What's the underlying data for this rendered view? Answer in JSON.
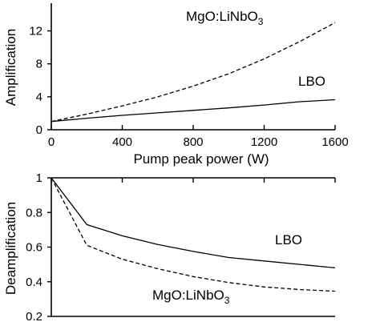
{
  "chart_data": [
    {
      "type": "line",
      "title": "",
      "xlabel": "Pump peak power (W)",
      "ylabel": "Amplification",
      "xlim": [
        0,
        1600
      ],
      "ylim": [
        0,
        14
      ],
      "x_ticks": [
        0,
        400,
        800,
        1200,
        1600
      ],
      "x_tick_labels": [
        "0",
        "400",
        "800",
        "1200",
        "1600"
      ],
      "y_ticks": [
        0,
        4,
        8,
        12
      ],
      "y_tick_labels": [
        "0",
        "4",
        "8",
        "12"
      ],
      "grid": false,
      "series": [
        {
          "name": "MgO:LiNbO",
          "name_subscript": "3",
          "style": "dashed",
          "x": [
            0,
            200,
            400,
            600,
            800,
            1000,
            1200,
            1400,
            1600
          ],
          "y": [
            1.0,
            1.9,
            2.9,
            4.0,
            5.3,
            6.8,
            8.6,
            10.7,
            13.0
          ]
        },
        {
          "name": "LBO",
          "style": "solid",
          "x": [
            0,
            200,
            400,
            600,
            800,
            1000,
            1200,
            1400,
            1600
          ],
          "y": [
            1.0,
            1.4,
            1.75,
            2.05,
            2.35,
            2.65,
            3.0,
            3.4,
            3.65
          ]
        }
      ]
    },
    {
      "type": "line",
      "title": "",
      "xlabel": "",
      "ylabel": "Deamplification",
      "xlim": [
        0,
        1600
      ],
      "ylim": [
        0.2,
        1.0
      ],
      "x_ticks": [
        0,
        400,
        800,
        1200,
        1600
      ],
      "y_ticks": [
        0.2,
        0.4,
        0.6,
        0.8,
        1.0
      ],
      "y_tick_labels": [
        "0.2",
        "0.4",
        "0.6",
        "0.8",
        "1"
      ],
      "grid": false,
      "series": [
        {
          "name": "LBO",
          "style": "solid",
          "x": [
            0,
            200,
            400,
            600,
            800,
            1000,
            1200,
            1400,
            1600
          ],
          "y": [
            1.0,
            0.73,
            0.665,
            0.615,
            0.575,
            0.54,
            0.52,
            0.5,
            0.48
          ]
        },
        {
          "name": "MgO:LiNbO",
          "name_subscript": "3",
          "style": "dashed",
          "x": [
            0,
            200,
            400,
            600,
            800,
            1000,
            1200,
            1400,
            1600
          ],
          "y": [
            1.0,
            0.61,
            0.53,
            0.475,
            0.43,
            0.395,
            0.37,
            0.355,
            0.345
          ]
        }
      ]
    }
  ]
}
